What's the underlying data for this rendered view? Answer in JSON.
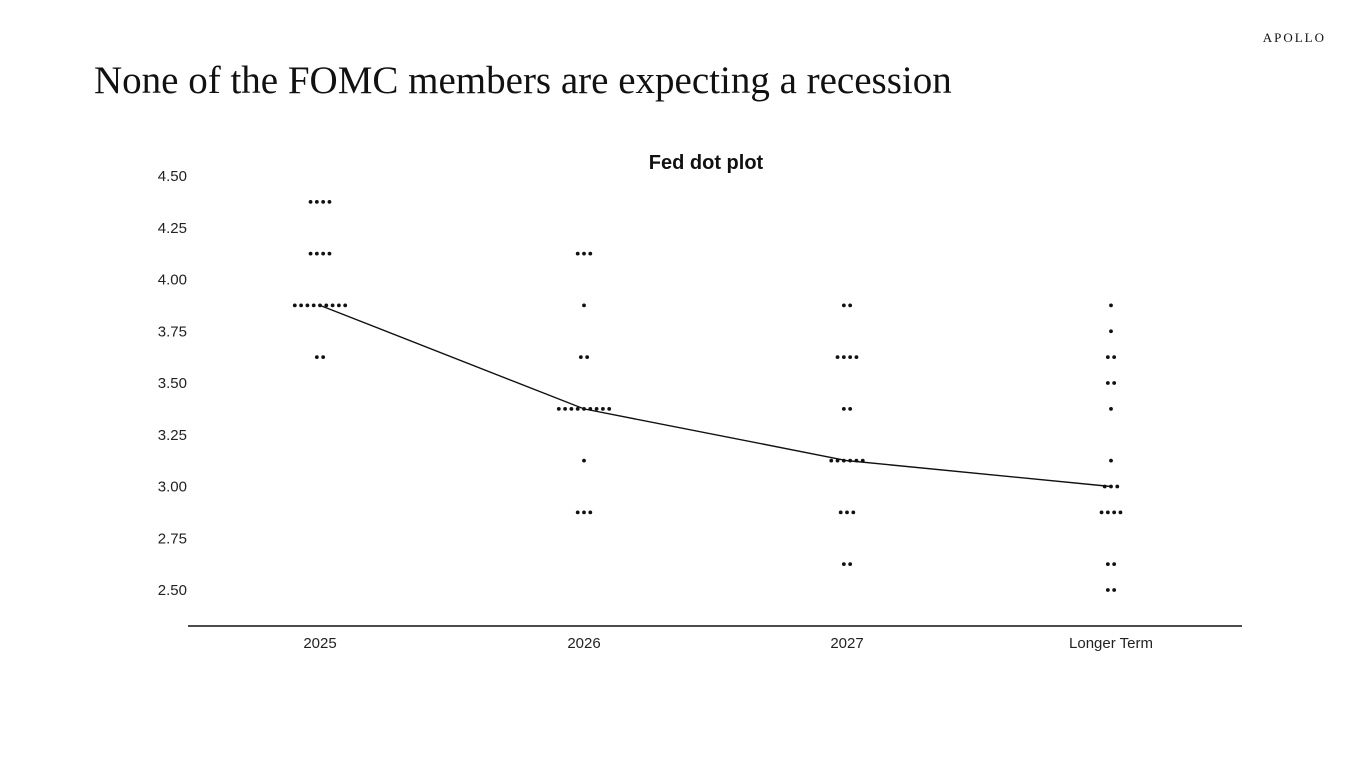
{
  "header": {
    "brand": "APOLLO",
    "headline": "None of the FOMC members are expecting a recession"
  },
  "chart_data": {
    "type": "scatter",
    "title": "Fed dot plot",
    "xlabel": "",
    "ylabel": "",
    "categories": [
      "2025",
      "2026",
      "2027",
      "Longer Term"
    ],
    "y_ticks": [
      "4.50",
      "4.25",
      "4.00",
      "3.75",
      "3.50",
      "3.25",
      "3.00",
      "2.75",
      "2.50"
    ],
    "ylim": [
      2.325,
      4.5
    ],
    "grid": false,
    "dots": [
      {
        "category": "2025",
        "points": [
          {
            "rate": 4.375,
            "count": 4
          },
          {
            "rate": 4.125,
            "count": 4
          },
          {
            "rate": 3.875,
            "count": 9
          },
          {
            "rate": 3.625,
            "count": 2
          }
        ]
      },
      {
        "category": "2026",
        "points": [
          {
            "rate": 4.125,
            "count": 3
          },
          {
            "rate": 3.875,
            "count": 1
          },
          {
            "rate": 3.625,
            "count": 2
          },
          {
            "rate": 3.375,
            "count": 9
          },
          {
            "rate": 3.125,
            "count": 1
          },
          {
            "rate": 2.875,
            "count": 3
          }
        ]
      },
      {
        "category": "2027",
        "points": [
          {
            "rate": 3.875,
            "count": 2
          },
          {
            "rate": 3.625,
            "count": 4
          },
          {
            "rate": 3.375,
            "count": 2
          },
          {
            "rate": 3.125,
            "count": 6
          },
          {
            "rate": 2.875,
            "count": 3
          },
          {
            "rate": 2.625,
            "count": 2
          }
        ]
      },
      {
        "category": "Longer Term",
        "points": [
          {
            "rate": 3.875,
            "count": 1
          },
          {
            "rate": 3.75,
            "count": 1
          },
          {
            "rate": 3.625,
            "count": 2
          },
          {
            "rate": 3.5,
            "count": 2
          },
          {
            "rate": 3.375,
            "count": 1
          },
          {
            "rate": 3.125,
            "count": 1
          },
          {
            "rate": 3.0,
            "count": 3
          },
          {
            "rate": 2.875,
            "count": 4
          },
          {
            "rate": 2.625,
            "count": 2
          },
          {
            "rate": 2.5,
            "count": 2
          }
        ]
      }
    ],
    "median_line": [
      {
        "category": "2025",
        "value": 3.875
      },
      {
        "category": "2026",
        "value": 3.375
      },
      {
        "category": "2027",
        "value": 3.125
      },
      {
        "category": "Longer Term",
        "value": 3.0
      }
    ],
    "colors": {
      "dots": "#111111",
      "line": "#111111",
      "axis": "#111111"
    }
  }
}
